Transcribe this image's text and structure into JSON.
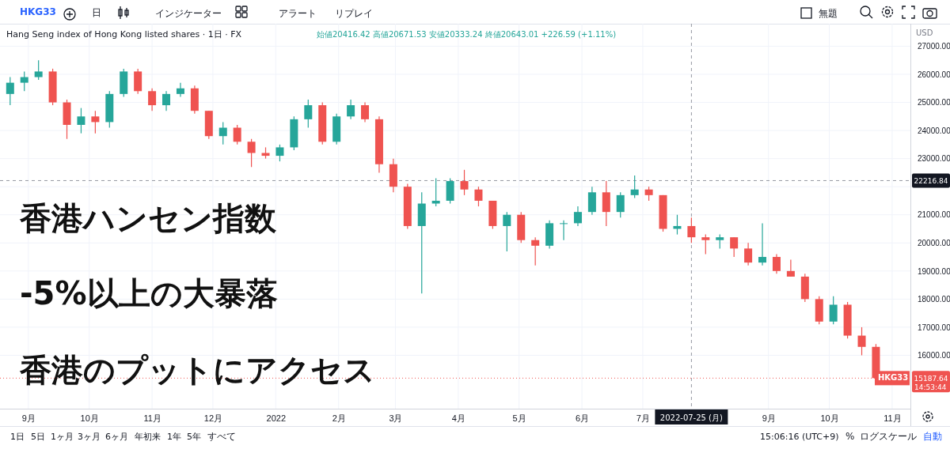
{
  "chart_data": {
    "type": "candlestick",
    "title": "Hang Seng index of Hong Kong listed shares · 1日 · FX",
    "subtitle": "始値20416.42 高値20671.53 安値20333.24 終値20643.01 +226.59 (+1.11%)",
    "x": [
      "2021-08-23",
      "2021-08-30",
      "2021-09-06",
      "2021-09-13",
      "2021-09-20",
      "2021-09-27",
      "2021-10-04",
      "2021-10-11",
      "2021-10-18",
      "2021-10-25",
      "2021-11-01",
      "2021-11-08",
      "2021-11-15",
      "2021-11-22",
      "2021-11-29",
      "2021-12-06",
      "2021-12-13",
      "2021-12-20",
      "2021-12-27",
      "2022-01-03",
      "2022-01-10",
      "2022-01-17",
      "2022-01-24",
      "2022-01-31",
      "2022-02-07",
      "2022-02-14",
      "2022-02-21",
      "2022-02-28",
      "2022-03-07",
      "2022-03-14",
      "2022-03-21",
      "2022-03-28",
      "2022-04-04",
      "2022-04-11",
      "2022-04-18",
      "2022-04-25",
      "2022-05-02",
      "2022-05-09",
      "2022-05-16",
      "2022-05-23",
      "2022-05-30",
      "2022-06-06",
      "2022-06-13",
      "2022-06-20",
      "2022-06-27",
      "2022-07-04",
      "2022-07-11",
      "2022-07-18",
      "2022-07-25",
      "2022-08-01",
      "2022-08-08",
      "2022-08-15",
      "2022-08-22",
      "2022-08-29",
      "2022-09-05",
      "2022-09-12",
      "2022-09-19",
      "2022-09-26",
      "2022-10-03",
      "2022-10-10",
      "2022-10-17",
      "2022-10-24"
    ],
    "ohlc": [
      [
        25300,
        25900,
        24900,
        25700
      ],
      [
        25700,
        26100,
        25400,
        25900
      ],
      [
        25900,
        26500,
        25800,
        26100
      ],
      [
        26100,
        26200,
        24900,
        25000
      ],
      [
        25000,
        25100,
        23700,
        24200
      ],
      [
        24200,
        24800,
        23900,
        24500
      ],
      [
        24500,
        24700,
        23900,
        24300
      ],
      [
        24300,
        25400,
        24100,
        25300
      ],
      [
        25300,
        26200,
        25200,
        26100
      ],
      [
        26100,
        26200,
        25300,
        25400
      ],
      [
        25400,
        25500,
        24700,
        24900
      ],
      [
        24900,
        25400,
        24700,
        25300
      ],
      [
        25300,
        25700,
        25200,
        25500
      ],
      [
        25500,
        25600,
        24600,
        24700
      ],
      [
        24700,
        24700,
        23700,
        23800
      ],
      [
        23800,
        24300,
        23500,
        24100
      ],
      [
        24100,
        24200,
        23500,
        23600
      ],
      [
        23600,
        23700,
        22700,
        23200
      ],
      [
        23200,
        23400,
        23000,
        23100
      ],
      [
        23100,
        23500,
        22900,
        23400
      ],
      [
        23400,
        24500,
        23300,
        24400
      ],
      [
        24400,
        25100,
        24100,
        24900
      ],
      [
        24900,
        25000,
        23500,
        23600
      ],
      [
        23600,
        24600,
        23500,
        24500
      ],
      [
        24500,
        25100,
        24400,
        24900
      ],
      [
        24900,
        25000,
        24300,
        24400
      ],
      [
        24400,
        24500,
        22500,
        22800
      ],
      [
        22800,
        23000,
        21800,
        22000
      ],
      [
        22000,
        22100,
        20500,
        20600
      ],
      [
        20600,
        21800,
        18200,
        21400
      ],
      [
        21400,
        22300,
        21300,
        21500
      ],
      [
        21500,
        22300,
        21400,
        22200
      ],
      [
        22200,
        22600,
        21700,
        21900
      ],
      [
        21900,
        22000,
        21300,
        21500
      ],
      [
        21500,
        21500,
        20500,
        20600
      ],
      [
        20600,
        21100,
        19700,
        21000
      ],
      [
        21000,
        21100,
        20000,
        20100
      ],
      [
        20100,
        20200,
        19200,
        19900
      ],
      [
        19900,
        20800,
        19800,
        20700
      ],
      [
        20700,
        20800,
        20100,
        20700
      ],
      [
        20700,
        21300,
        20600,
        21100
      ],
      [
        21100,
        22000,
        21000,
        21800
      ],
      [
        21800,
        22200,
        20600,
        21100
      ],
      [
        21100,
        21800,
        20900,
        21700
      ],
      [
        21700,
        22400,
        21600,
        21900
      ],
      [
        21900,
        22000,
        21500,
        21700
      ],
      [
        21700,
        21700,
        20400,
        20500
      ],
      [
        20500,
        21000,
        20300,
        20600
      ],
      [
        20600,
        20900,
        20000,
        20200
      ],
      [
        20200,
        20300,
        19600,
        20100
      ],
      [
        20100,
        20300,
        19800,
        20200
      ],
      [
        20200,
        20200,
        19500,
        19800
      ],
      [
        19800,
        20000,
        19200,
        19300
      ],
      [
        19300,
        20700,
        19200,
        19500
      ],
      [
        19500,
        19600,
        18900,
        19000
      ],
      [
        19000,
        19400,
        18800,
        18800
      ],
      [
        18800,
        18900,
        17900,
        18000
      ],
      [
        18000,
        18100,
        17100,
        17200
      ],
      [
        17200,
        18100,
        17100,
        17800
      ],
      [
        17800,
        17900,
        16600,
        16700
      ],
      [
        16700,
        17000,
        16000,
        16300
      ],
      [
        16300,
        16400,
        15100,
        15187.64
      ]
    ],
    "xlim": [
      "2021-08-18",
      "2022-11-10"
    ],
    "xticks": [
      {
        "value": "2021-09-01",
        "label": "9月"
      },
      {
        "value": "2021-10-01",
        "label": "10月"
      },
      {
        "value": "2021-11-01",
        "label": "11月"
      },
      {
        "value": "2021-12-01",
        "label": "12月"
      },
      {
        "value": "2022-01-01",
        "label": "2022"
      },
      {
        "value": "2022-02-01",
        "label": "2月"
      },
      {
        "value": "2022-03-01",
        "label": "3月"
      },
      {
        "value": "2022-04-01",
        "label": "4月"
      },
      {
        "value": "2022-05-01",
        "label": "5月"
      },
      {
        "value": "2022-06-01",
        "label": "6月"
      },
      {
        "value": "2022-07-01",
        "label": "7月"
      },
      {
        "value": "2022-09-01",
        "label": "9月"
      },
      {
        "value": "2022-10-01",
        "label": "10月"
      },
      {
        "value": "2022-11-01",
        "label": "11月"
      }
    ],
    "ylim": [
      14100,
      27800
    ],
    "yticks": [
      {
        "value": 16000,
        "label": "16000.00"
      },
      {
        "value": 17000,
        "label": "17000.00"
      },
      {
        "value": 18000,
        "label": "18000.00"
      },
      {
        "value": 19000,
        "label": "19000.00"
      },
      {
        "value": 20000,
        "label": "20000.00"
      },
      {
        "value": 21000,
        "label": "21000.00"
      },
      {
        "value": 22000,
        "label": null
      },
      {
        "value": 23000,
        "label": "23000.00"
      },
      {
        "value": 24000,
        "label": "24000.00"
      },
      {
        "value": 25000,
        "label": "25000.00"
      },
      {
        "value": 26000,
        "label": "26000.00"
      },
      {
        "value": 27000,
        "label": "27000.00"
      }
    ],
    "grid": true,
    "ref_lines": [
      {
        "axis": "y",
        "value": 22216.84,
        "label": "22216.84",
        "color": "#9598a1",
        "line_style": "dashed"
      },
      {
        "axis": "x",
        "value": "2022-07-25",
        "label": "2022-07-25 (月)",
        "color": "#9598a1",
        "line_style": "dashed"
      },
      {
        "axis": "y",
        "value": 15187.64,
        "label": "15187.64",
        "color": "#ef5350",
        "line_style": "dotted"
      }
    ],
    "annotations": [
      "香港ハンセン指数",
      "-5%以上の大暴落",
      "香港のプットにアクセス",
      "HKG33",
      "日",
      "インジケーター",
      "アラート",
      "リプレイ",
      "無題",
      "USD",
      "HKG33",
      "14:53:44",
      "1日",
      "5日",
      "1ヶ月",
      "3ヶ月",
      "6ヶ月",
      "年初来",
      "1年",
      "5年",
      "すべて",
      "15:06:16 (UTC+9)",
      "%",
      "ログスケール",
      "自動"
    ]
  }
}
